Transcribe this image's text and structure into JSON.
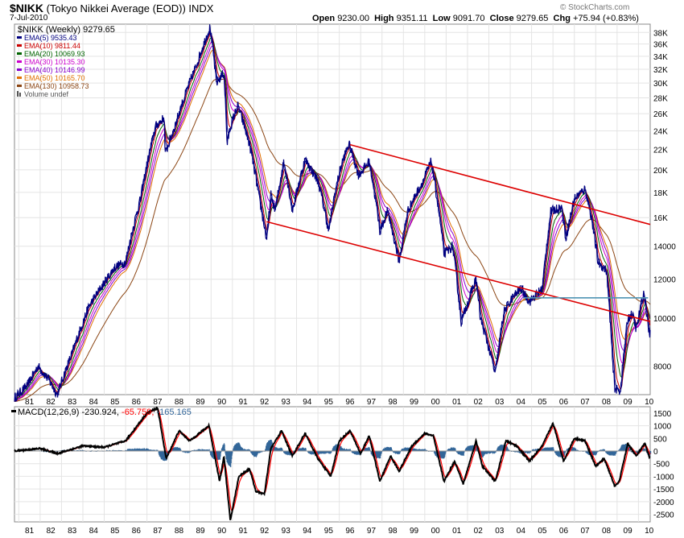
{
  "header": {
    "symbol": "$NIKK",
    "description": "(Tokyo Nikkei Average (EOD))",
    "exchange": "INDX",
    "date": "7-Jul-2010",
    "open_label": "Open",
    "open": "9230.00",
    "high_label": "High",
    "high": "9351.11",
    "low_label": "Low",
    "low": "9091.70",
    "close_label": "Close",
    "close": "9279.65",
    "chg_label": "Chg",
    "chg": "+75.94 (+0.83%)",
    "credit": "© StockCharts.com"
  },
  "chart_data": [
    {
      "type": "line",
      "title": "$NIKK (Weekly) 9279.65",
      "scale": "log",
      "ylim": [
        7000,
        39500
      ],
      "yticks": [
        "38K",
        "36K",
        "34K",
        "32K",
        "30K",
        "28K",
        "26K",
        "24K",
        "22K",
        "20K",
        "18K",
        "16K",
        "14000",
        "12000",
        "10000",
        "8000"
      ],
      "ytick_values": [
        38000,
        36000,
        34000,
        32000,
        30000,
        28000,
        26000,
        24000,
        22000,
        20000,
        18000,
        16000,
        14000,
        12000,
        10000,
        8000
      ],
      "xlim": [
        1980.8,
        2010.55
      ],
      "xticks": [
        "81",
        "82",
        "83",
        "84",
        "85",
        "86",
        "87",
        "88",
        "89",
        "90",
        "91",
        "92",
        "93",
        "94",
        "95",
        "96",
        "97",
        "98",
        "99",
        "00",
        "01",
        "02",
        "03",
        "04",
        "05",
        "06",
        "07",
        "08",
        "09",
        "10"
      ],
      "price_keypoints": [
        [
          1980.8,
          6900
        ],
        [
          1981.4,
          7300
        ],
        [
          1981.9,
          8000
        ],
        [
          1982.4,
          7500
        ],
        [
          1982.8,
          7000
        ],
        [
          1983.5,
          8500
        ],
        [
          1984.3,
          10600
        ],
        [
          1985.0,
          11800
        ],
        [
          1985.5,
          12700
        ],
        [
          1986.0,
          13000
        ],
        [
          1986.7,
          17500
        ],
        [
          1987.4,
          24500
        ],
        [
          1987.8,
          25500
        ],
        [
          1987.85,
          21500
        ],
        [
          1988.3,
          24500
        ],
        [
          1988.8,
          28500
        ],
        [
          1989.3,
          32500
        ],
        [
          1989.95,
          38900
        ],
        [
          1990.25,
          30000
        ],
        [
          1990.6,
          31500
        ],
        [
          1990.75,
          22500
        ],
        [
          1990.9,
          24500
        ],
        [
          1991.25,
          27000
        ],
        [
          1991.8,
          22500
        ],
        [
          1992.25,
          17500
        ],
        [
          1992.6,
          14400
        ],
        [
          1992.8,
          17800
        ],
        [
          1993.0,
          16500
        ],
        [
          1993.4,
          20800
        ],
        [
          1993.8,
          16500
        ],
        [
          1994.4,
          21000
        ],
        [
          1995.0,
          19000
        ],
        [
          1995.5,
          15000
        ],
        [
          1995.8,
          18000
        ],
        [
          1996.1,
          20500
        ],
        [
          1996.45,
          22600
        ],
        [
          1996.9,
          19500
        ],
        [
          1997.4,
          20800
        ],
        [
          1997.9,
          15000
        ],
        [
          1998.25,
          16500
        ],
        [
          1998.8,
          13000
        ],
        [
          1999.2,
          16500
        ],
        [
          1999.9,
          18900
        ],
        [
          2000.3,
          20800
        ],
        [
          2000.9,
          13500
        ],
        [
          2001.3,
          14000
        ],
        [
          2001.7,
          9800
        ],
        [
          2002.4,
          12000
        ],
        [
          2002.6,
          10000
        ],
        [
          2003.3,
          7700
        ],
        [
          2003.7,
          10300
        ],
        [
          2004.1,
          11000
        ],
        [
          2004.5,
          11500
        ],
        [
          2004.9,
          10800
        ],
        [
          2005.5,
          11500
        ],
        [
          2005.9,
          16500
        ],
        [
          2006.4,
          16800
        ],
        [
          2006.6,
          14500
        ],
        [
          2007.0,
          17500
        ],
        [
          2007.5,
          18300
        ],
        [
          2007.8,
          16000
        ],
        [
          2008.1,
          13000
        ],
        [
          2008.5,
          12500
        ],
        [
          2008.8,
          8000
        ],
        [
          2008.9,
          7200
        ],
        [
          2009.15,
          7100
        ],
        [
          2009.5,
          10000
        ],
        [
          2009.7,
          10200
        ],
        [
          2009.9,
          9500
        ],
        [
          2010.25,
          11300
        ],
        [
          2010.5,
          9300
        ]
      ],
      "legend": [
        {
          "label": "EMA(5) 9535.43",
          "color": "#000080",
          "period": 5
        },
        {
          "label": "EMA(10) 9811.44",
          "color": "#cc0000",
          "period": 10
        },
        {
          "label": "EMA(20) 10069.93",
          "color": "#006400",
          "period": 20
        },
        {
          "label": "EMA(30) 10135.30",
          "color": "#cc00cc",
          "period": 30
        },
        {
          "label": "EMA(40) 10146.99",
          "color": "#8800cc",
          "period": 40
        },
        {
          "label": "EMA(50) 10165.70",
          "color": "#e07000",
          "period": 50
        },
        {
          "label": "EMA(130) 10958.73",
          "color": "#8b4513",
          "period": 130
        },
        {
          "label": "Volume undef",
          "color": "#555555",
          "period": 0
        }
      ],
      "trendlines": [
        {
          "color": "#dd0000",
          "points": [
            [
              1996.5,
              22500
            ],
            [
              2010.55,
              15500
            ]
          ]
        },
        {
          "color": "#dd0000",
          "points": [
            [
              1992.6,
              15700
            ],
            [
              2010.55,
              9850
            ]
          ]
        },
        {
          "color": "#4f94b4",
          "points": [
            [
              2004.6,
              11000
            ],
            [
              2010.45,
              11000
            ]
          ]
        }
      ]
    },
    {
      "type": "line",
      "title": "MACD(12,26,9)",
      "macd_value": "-230.924,",
      "signal_value": "-65.759,",
      "hist_value": "-165.165",
      "ylim": [
        -2800,
        1750
      ],
      "yticks": [
        "1500",
        "1000",
        "500",
        "0",
        "-500",
        "-1000",
        "-1500",
        "-2000",
        "-2500"
      ],
      "ytick_values": [
        1500,
        1000,
        500,
        0,
        -500,
        -1000,
        -1500,
        -2000,
        -2500
      ],
      "series": [
        {
          "name": "MACD",
          "color": "#000000"
        },
        {
          "name": "Signal",
          "color": "#ff0000"
        },
        {
          "name": "Histogram",
          "color": "#336699"
        }
      ],
      "macd_keypoints": [
        [
          1980.8,
          0
        ],
        [
          1982.0,
          100
        ],
        [
          1982.8,
          -100
        ],
        [
          1984.0,
          200
        ],
        [
          1985.0,
          150
        ],
        [
          1986.0,
          400
        ],
        [
          1987.0,
          1500
        ],
        [
          1987.5,
          1700
        ],
        [
          1987.9,
          -300
        ],
        [
          1988.5,
          800
        ],
        [
          1989.0,
          400
        ],
        [
          1989.9,
          1000
        ],
        [
          1990.4,
          -1200
        ],
        [
          1990.6,
          -200
        ],
        [
          1990.9,
          -2750
        ],
        [
          1991.3,
          -1000
        ],
        [
          1991.8,
          -700
        ],
        [
          1992.1,
          -1600
        ],
        [
          1992.5,
          -1700
        ],
        [
          1992.8,
          100
        ],
        [
          1993.3,
          800
        ],
        [
          1993.8,
          -200
        ],
        [
          1994.4,
          700
        ],
        [
          1995.0,
          -300
        ],
        [
          1995.6,
          -1000
        ],
        [
          1996.0,
          400
        ],
        [
          1996.5,
          800
        ],
        [
          1997.0,
          -100
        ],
        [
          1997.4,
          600
        ],
        [
          1997.9,
          -1200
        ],
        [
          1998.4,
          -200
        ],
        [
          1998.8,
          -800
        ],
        [
          1999.4,
          200
        ],
        [
          2000.0,
          700
        ],
        [
          2000.4,
          600
        ],
        [
          2000.9,
          -1200
        ],
        [
          2001.4,
          -400
        ],
        [
          2001.8,
          -1300
        ],
        [
          2002.4,
          400
        ],
        [
          2002.7,
          -600
        ],
        [
          2003.3,
          -1200
        ],
        [
          2003.8,
          400
        ],
        [
          2004.3,
          200
        ],
        [
          2004.9,
          -400
        ],
        [
          2005.5,
          200
        ],
        [
          2006.0,
          1100
        ],
        [
          2006.5,
          -400
        ],
        [
          2007.0,
          500
        ],
        [
          2007.5,
          400
        ],
        [
          2008.0,
          -600
        ],
        [
          2008.4,
          -300
        ],
        [
          2008.9,
          -1400
        ],
        [
          2009.1,
          -1200
        ],
        [
          2009.5,
          300
        ],
        [
          2009.9,
          -200
        ],
        [
          2010.3,
          300
        ],
        [
          2010.5,
          -231
        ]
      ]
    }
  ]
}
